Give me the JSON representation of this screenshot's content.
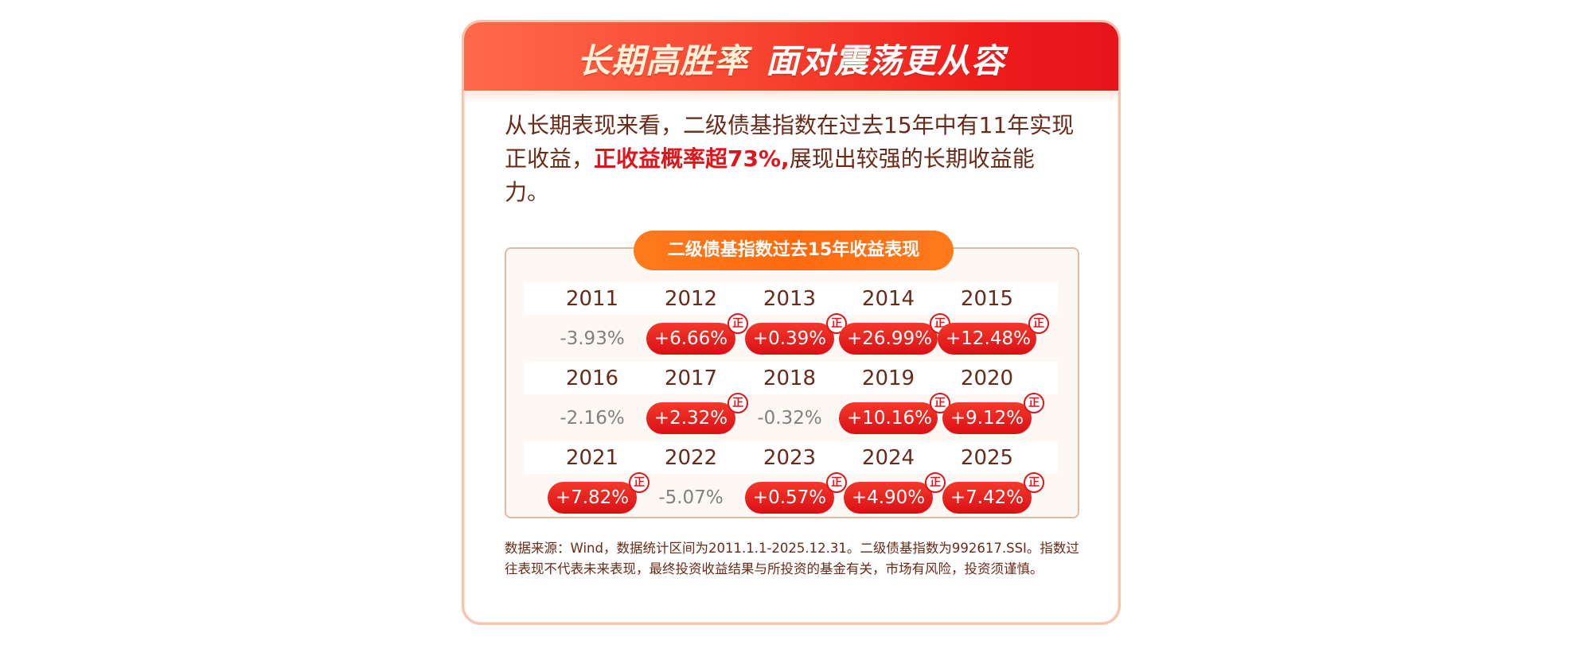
{
  "header": {
    "title_part1": "长期高胜率",
    "title_part2": "面对震荡更从容"
  },
  "intro": {
    "text_before": "从长期表现来看，二级债基指数在过去15年中有11年实现正收益，",
    "highlight": "正收益概率超73%,",
    "text_after": "展现出较强的长期收益能力。"
  },
  "table": {
    "title": "二级债基指数过去15年收益表现",
    "badge_label": "正"
  },
  "colors": {
    "header_gradient_start": "#ff6a4a",
    "header_gradient_end": "#e8141c",
    "positive_pill": "#e0141b",
    "negative_text": "#808080",
    "panel_title_bg": "#ff6a0f",
    "text_brown": "#6b2a17"
  },
  "chart_data": {
    "type": "table",
    "title": "二级债基指数过去15年收益表现",
    "columns": [
      "year",
      "return_pct",
      "positive"
    ],
    "rows": [
      {
        "year": "2011",
        "value": "-3.93%",
        "positive": false
      },
      {
        "year": "2012",
        "value": "+6.66%",
        "positive": true
      },
      {
        "year": "2013",
        "value": "+0.39%",
        "positive": true
      },
      {
        "year": "2014",
        "value": "+26.99%",
        "positive": true
      },
      {
        "year": "2015",
        "value": "+12.48%",
        "positive": true
      },
      {
        "year": "2016",
        "value": "-2.16%",
        "positive": false
      },
      {
        "year": "2017",
        "value": "+2.32%",
        "positive": true
      },
      {
        "year": "2018",
        "value": "-0.32%",
        "positive": false
      },
      {
        "year": "2019",
        "value": "+10.16%",
        "positive": true
      },
      {
        "year": "2020",
        "value": "+9.12%",
        "positive": true
      },
      {
        "year": "2021",
        "value": "+7.82%",
        "positive": true
      },
      {
        "year": "2022",
        "value": "-5.07%",
        "positive": false
      },
      {
        "year": "2023",
        "value": "+0.57%",
        "positive": true
      },
      {
        "year": "2024",
        "value": "+4.90%",
        "positive": true
      },
      {
        "year": "2025",
        "value": "+7.42%",
        "positive": true
      }
    ],
    "returns": [
      -3.93,
      6.66,
      0.39,
      26.99,
      12.48,
      -2.16,
      2.32,
      -0.32,
      10.16,
      9.12,
      7.82,
      -5.07,
      0.57,
      4.9,
      7.42
    ]
  },
  "footnote": {
    "line1": "数据来源：Wind，数据统计区间为2011.1.1-2025.12.31。二级债基指数为992617.SSI。指数过",
    "line2": "往表现不代表未来表现，最终投资收益结果与所投资的基金有关，市场有风险，投资须谨慎。"
  }
}
